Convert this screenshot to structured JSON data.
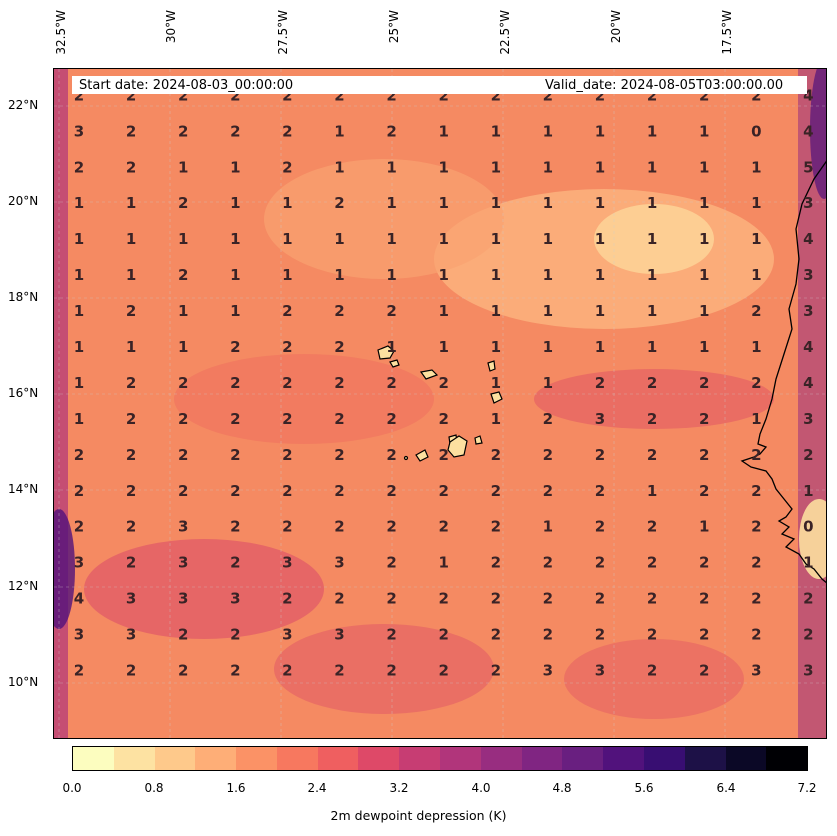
{
  "header": {
    "start_date": "Start date: 2024-08-03_00:00:00",
    "valid_date": "Valid_date: 2024-08-05T03:00:00.00"
  },
  "lon_ticks": [
    "32.5°W",
    "30°W",
    "27.5°W",
    "25°W",
    "22.5°W",
    "20°W",
    "17.5°W"
  ],
  "lat_ticks": [
    "22°N",
    "20°N",
    "18°N",
    "16°N",
    "14°N",
    "12°N",
    "10°N"
  ],
  "colorbar": {
    "label": "2m dewpoint depression (K)",
    "ticks": [
      "0.0",
      "0.8",
      "1.6",
      "2.4",
      "3.2",
      "4.0",
      "4.8",
      "5.6",
      "6.4",
      "7.2"
    ],
    "min": 0.0,
    "max": 7.2,
    "colors": [
      "#fcfdbf",
      "#fde2a2",
      "#fec98b",
      "#feae77",
      "#fb9266",
      "#f7785f",
      "#ef5f60",
      "#de4968",
      "#c73d73",
      "#b1357b",
      "#982d80",
      "#802582",
      "#691f80",
      "#51127c",
      "#380e72",
      "#1d1147",
      "#0b0826",
      "#000004"
    ]
  },
  "map": {
    "lon_range": [
      -33.0,
      -15.5
    ],
    "lat_range": [
      8.8,
      22.8
    ],
    "rows": [
      {
        "lat": 22.25,
        "values": [
          2,
          2,
          2,
          2,
          2,
          2,
          2,
          2,
          2,
          2,
          2,
          2,
          2,
          2,
          4
        ]
      },
      {
        "lat": 21.5,
        "values": [
          3,
          2,
          2,
          2,
          2,
          1,
          2,
          1,
          1,
          1,
          1,
          1,
          1,
          0,
          4
        ]
      },
      {
        "lat": 20.75,
        "values": [
          2,
          2,
          1,
          1,
          2,
          1,
          1,
          1,
          1,
          1,
          1,
          1,
          1,
          1,
          5
        ]
      },
      {
        "lat": 20.0,
        "values": [
          1,
          1,
          2,
          1,
          1,
          2,
          1,
          1,
          1,
          1,
          1,
          1,
          1,
          1,
          3
        ]
      },
      {
        "lat": 19.25,
        "values": [
          1,
          1,
          1,
          1,
          1,
          1,
          1,
          1,
          1,
          1,
          1,
          1,
          1,
          1,
          4
        ]
      },
      {
        "lat": 18.5,
        "values": [
          1,
          1,
          2,
          1,
          1,
          1,
          1,
          1,
          1,
          1,
          1,
          1,
          1,
          1,
          3
        ]
      },
      {
        "lat": 17.75,
        "values": [
          1,
          2,
          1,
          1,
          2,
          2,
          2,
          1,
          1,
          1,
          1,
          1,
          1,
          2,
          3
        ]
      },
      {
        "lat": 17.0,
        "values": [
          1,
          1,
          1,
          2,
          2,
          2,
          1,
          1,
          1,
          1,
          1,
          1,
          1,
          1,
          4
        ]
      },
      {
        "lat": 16.25,
        "values": [
          1,
          2,
          2,
          2,
          2,
          2,
          2,
          2,
          1,
          1,
          2,
          2,
          2,
          2,
          4
        ]
      },
      {
        "lat": 15.5,
        "values": [
          1,
          2,
          2,
          2,
          2,
          2,
          2,
          2,
          1,
          2,
          3,
          2,
          2,
          1,
          3
        ]
      },
      {
        "lat": 14.75,
        "values": [
          2,
          2,
          2,
          2,
          2,
          2,
          2,
          2,
          2,
          2,
          2,
          2,
          2,
          2,
          2
        ]
      },
      {
        "lat": 14.0,
        "values": [
          2,
          2,
          2,
          2,
          2,
          2,
          2,
          2,
          2,
          2,
          2,
          1,
          2,
          2,
          1
        ]
      },
      {
        "lat": 13.25,
        "values": [
          2,
          2,
          3,
          2,
          2,
          2,
          2,
          2,
          2,
          1,
          2,
          2,
          1,
          2,
          0
        ]
      },
      {
        "lat": 12.5,
        "values": [
          3,
          2,
          3,
          2,
          3,
          3,
          2,
          1,
          2,
          2,
          2,
          2,
          2,
          2,
          1
        ]
      },
      {
        "lat": 11.75,
        "values": [
          4,
          3,
          3,
          3,
          2,
          2,
          2,
          2,
          2,
          2,
          2,
          2,
          2,
          2,
          2
        ]
      },
      {
        "lat": 11.0,
        "values": [
          3,
          3,
          2,
          2,
          3,
          3,
          2,
          2,
          2,
          2,
          2,
          2,
          2,
          2,
          2
        ]
      },
      {
        "lat": 10.25,
        "values": [
          2,
          2,
          2,
          2,
          2,
          2,
          2,
          2,
          2,
          3,
          3,
          2,
          2,
          3,
          3
        ]
      }
    ]
  }
}
